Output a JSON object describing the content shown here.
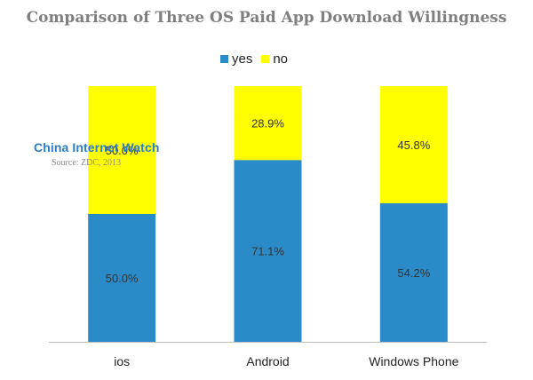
{
  "chart_data": {
    "type": "bar",
    "stacked": true,
    "title": "Comparison of Three OS Paid App Download Willingness",
    "categories": [
      "ios",
      "Android",
      "Windows Phone"
    ],
    "series": [
      {
        "name": "yes",
        "color": "#2b8bc9",
        "values": [
          50.0,
          71.1,
          54.2
        ],
        "labels": [
          "50.0%",
          "71.1%",
          "54.2%"
        ]
      },
      {
        "name": "no",
        "color": "#ffff00",
        "values": [
          50.0,
          28.9,
          45.8
        ],
        "labels": [
          "50.0%",
          "28.9%",
          "45.8%"
        ]
      }
    ],
    "ylim": [
      0,
      100
    ],
    "legend_position": "top",
    "grid": false
  },
  "watermark": {
    "brand": "China Internet Watch",
    "source": "Source: ZDC, 2013"
  }
}
